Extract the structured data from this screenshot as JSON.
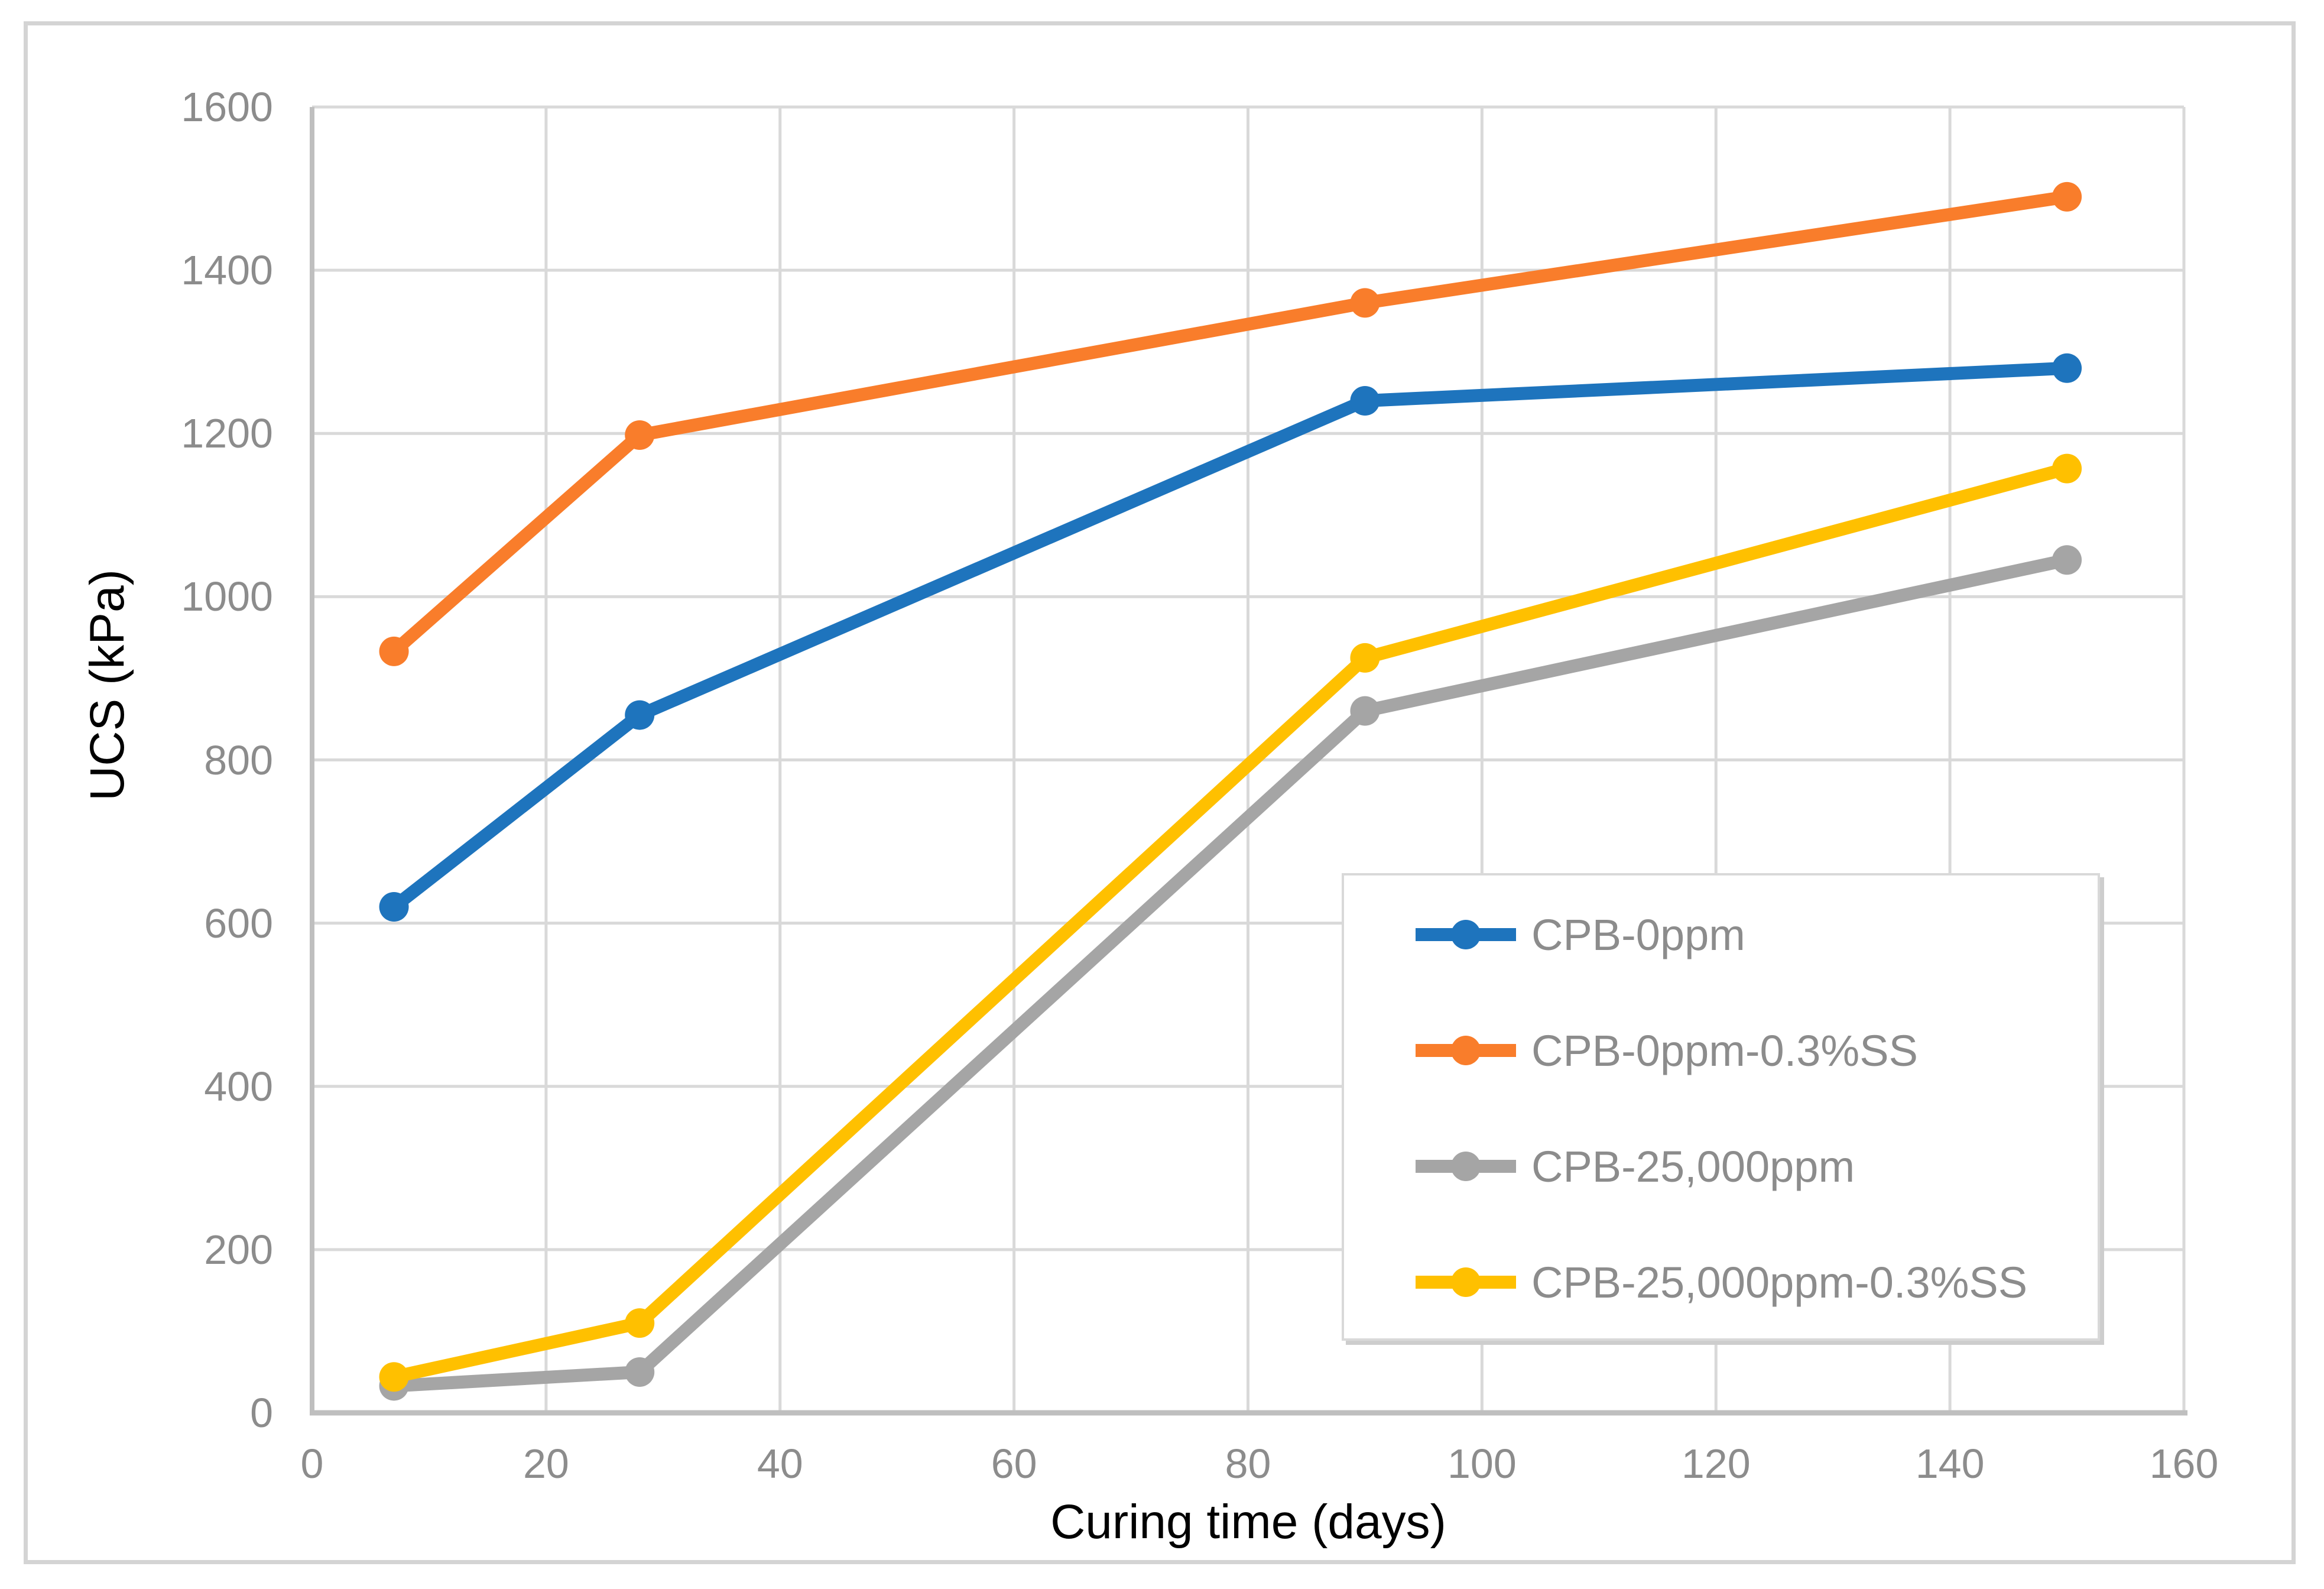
{
  "chart_data": {
    "type": "line",
    "title": "",
    "xlabel": "Curing time (days)",
    "ylabel": "UCS (kPa)",
    "x": [
      7,
      28,
      90,
      150
    ],
    "series": [
      {
        "name": "CPB-0ppm",
        "color": "#1e74bd",
        "values": [
          620,
          855,
          1240,
          1280
        ]
      },
      {
        "name": "CPB-0ppm-0.3%SS",
        "color": "#f97d2b",
        "values": [
          933,
          1198,
          1360,
          1490
        ]
      },
      {
        "name": "CPB-25,000ppm",
        "color": "#a5a5a5",
        "values": [
          33,
          50,
          860,
          1045
        ]
      },
      {
        "name": "CPB-25,000ppm-0.3%SS",
        "color": "#ffc000",
        "values": [
          44,
          110,
          925,
          1157
        ]
      }
    ],
    "x_axis": {
      "min": 0,
      "max": 160,
      "tick_step": 20,
      "ticks": [
        0,
        20,
        40,
        60,
        80,
        100,
        120,
        140,
        160
      ]
    },
    "y_axis": {
      "min": 0,
      "max": 1600,
      "tick_step": 200,
      "ticks": [
        0,
        200,
        400,
        600,
        800,
        1000,
        1200,
        1400,
        1600
      ]
    },
    "grid": true,
    "legend_position": "inside-right"
  },
  "colors": {
    "background": "#ffffff",
    "figure_border": "#d4d4d4",
    "gridline": "#d9d9d9",
    "axis_line": "#bfbfbf",
    "tick_text": "#8c8c8c",
    "axis_title_text": "#000000",
    "legend_text": "#8c8c8c",
    "legend_border": "#d9d9d9"
  }
}
